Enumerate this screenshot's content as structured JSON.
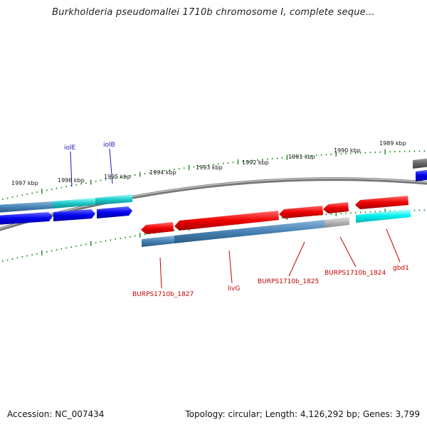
{
  "title": "Burkholderia pseudomallei 1710b chromosome I, complete seque...",
  "footer": {
    "accession": "Accession: NC_007434",
    "summary": "Topology: circular; Length: 4,126,292 bp; Genes: 3,799"
  },
  "ruler": {
    "ticks": [
      {
        "label": "1997 kbp"
      },
      {
        "label": "1996 kbp"
      },
      {
        "label": "1995 kbp"
      },
      {
        "label": "1994 kbp"
      },
      {
        "label": "1993 kbp"
      },
      {
        "label": "1992 kbp"
      },
      {
        "label": "1991 kbp"
      },
      {
        "label": "1990 kbp"
      },
      {
        "label": "1989 kbp"
      }
    ]
  },
  "gene_labels": {
    "iolE": "iolE",
    "iolB": "iolB",
    "b1827": "BURPS1710b_1827",
    "livG": "livG",
    "b1825": "BURPS1710b_1825",
    "b1824": "BURPS1710b_1824",
    "gbd1": "gbd1"
  },
  "colors": {
    "forward_gene": "#0000ee",
    "reverse_gene": "#ee0000",
    "cds_band": "#4682b4",
    "cds_highlight": "#1ec8c8",
    "cds_gray": "#b4b4b4",
    "backbone": "#888888",
    "ruler": "#2a8a2a"
  }
}
